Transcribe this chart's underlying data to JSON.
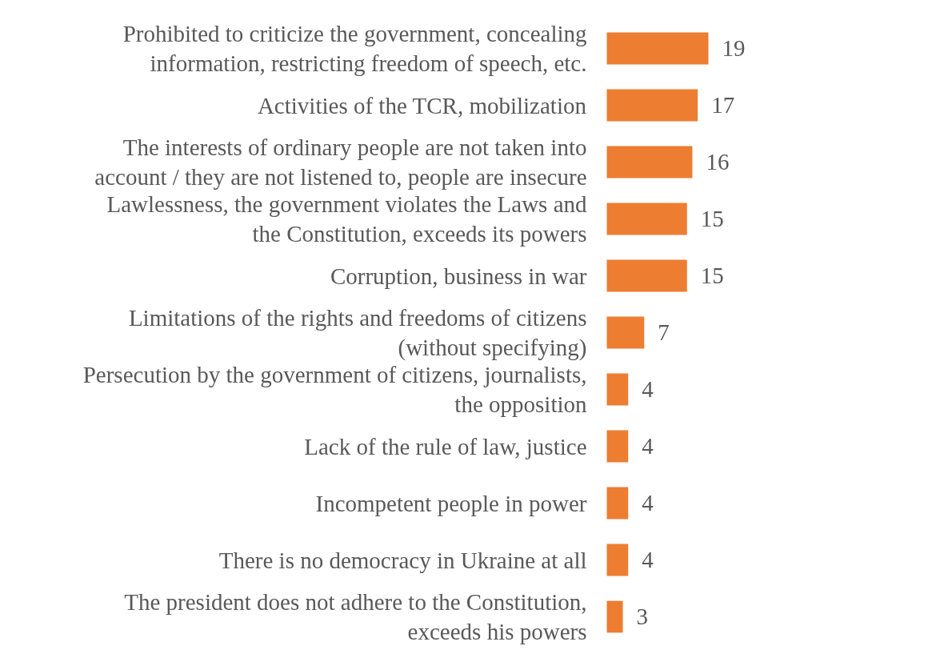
{
  "chart_data": {
    "type": "bar",
    "orientation": "horizontal",
    "categories": [
      "Prohibited to criticize the government, concealing\ninformation, restricting freedom of speech, etc.",
      "Activities of the TCR, mobilization",
      "The interests of ordinary people are not taken into\naccount / they are not listened to, people are insecure",
      "Lawlessness, the government violates the Laws and\nthe Constitution, exceeds its powers",
      "Corruption, business in war",
      "Limitations of the rights and freedoms of citizens\n(without specifying)",
      "Persecution by the government of citizens, journalists,\nthe opposition",
      "Lack of the rule of law, justice",
      "Incompetent people in power",
      "There is no democracy in Ukraine at all",
      "The president does not adhere to the Constitution,\nexceeds his powers"
    ],
    "values": [
      19,
      17,
      16,
      15,
      15,
      7,
      4,
      4,
      4,
      4,
      3
    ],
    "color": "#ed7d31",
    "data_labels": true
  }
}
